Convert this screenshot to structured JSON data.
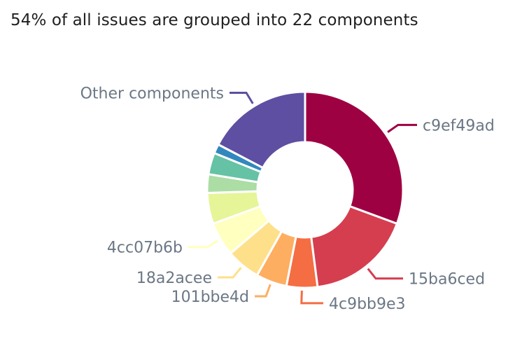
{
  "chart_data": {
    "type": "pie",
    "variant": "donut",
    "title": "54% of all issues are grouped into 22 components",
    "slices": [
      {
        "label": "c9ef49ad",
        "value": 30.0,
        "color": "#9e0142",
        "show_label": true
      },
      {
        "label": "15ba6ced",
        "value": 17.0,
        "color": "#d53e4f",
        "show_label": true
      },
      {
        "label": "4c9bb9e3",
        "value": 5.0,
        "color": "#f46d43",
        "show_label": true
      },
      {
        "label": "101bbe4d",
        "value": 5.0,
        "color": "#fdae61",
        "show_label": true
      },
      {
        "label": "18a2acee",
        "value": 5.5,
        "color": "#fee08b",
        "show_label": true
      },
      {
        "label": "4cc07b6b",
        "value": 5.5,
        "color": "#ffffbf",
        "show_label": true
      },
      {
        "label": "",
        "value": 5.0,
        "color": "#e6f598",
        "show_label": false
      },
      {
        "label": "",
        "value": 3.0,
        "color": "#abdda4",
        "show_label": false
      },
      {
        "label": "",
        "value": 3.5,
        "color": "#66c2a5",
        "show_label": false
      },
      {
        "label": "",
        "value": 1.5,
        "color": "#3288bd",
        "show_label": false
      },
      {
        "label": "Other components",
        "value": 17.0,
        "color": "#5e4fa2",
        "show_label": true
      }
    ],
    "label_color": "#6b7785"
  }
}
